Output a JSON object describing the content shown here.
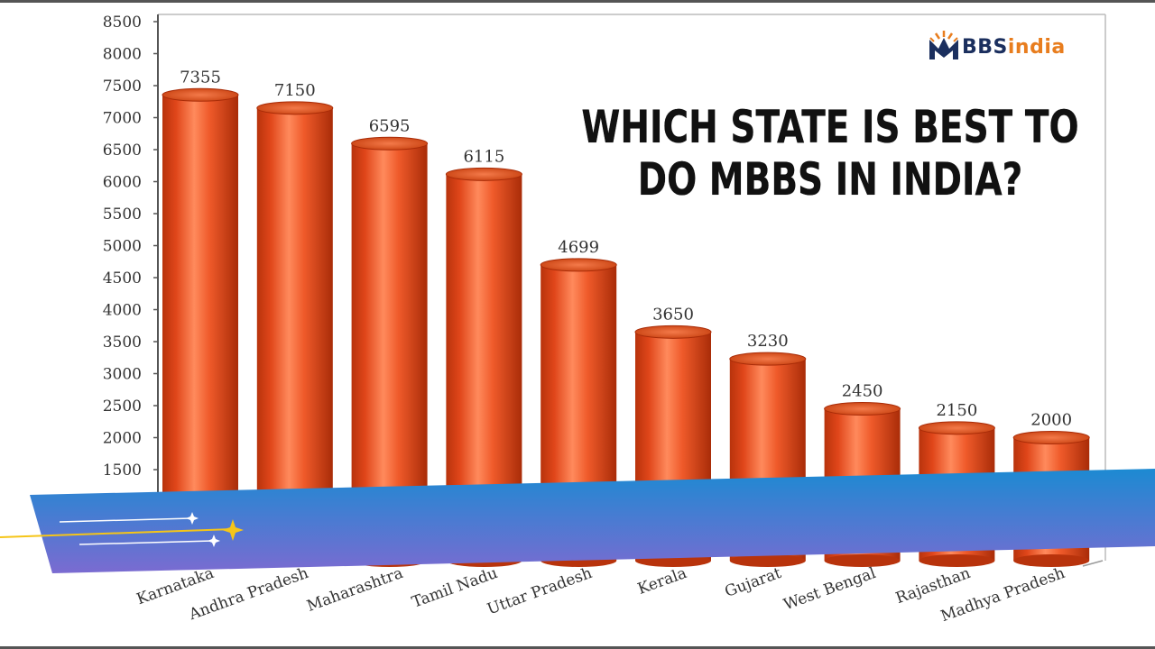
{
  "logo": {
    "brand_prefix": "M",
    "brand_blue": "BBS",
    "brand_orange": "india",
    "colors": {
      "blue": "#1b2f5e",
      "orange": "#e87d1e"
    }
  },
  "headline": {
    "line1": "WHICH STATE IS BEST TO",
    "line2": "DO MBBS IN INDIA?"
  },
  "banner": {
    "colors": {
      "start": "#1c8ad2",
      "end": "#7b6bd1",
      "sparkle": "#f5c518"
    },
    "icon": "sparkle-icon"
  },
  "chart_data": {
    "type": "bar",
    "categories": [
      "Karnataka",
      "Andhra Pradesh",
      "Maharashtra",
      "Tamil Nadu",
      "Uttar Pradesh",
      "Kerala",
      "Gujarat",
      "West Bengal",
      "Rajasthan",
      "Madhya Pradesh"
    ],
    "values": [
      7355,
      7150,
      6595,
      6115,
      4699,
      3650,
      3230,
      2450,
      2150,
      2000
    ],
    "data_labels": [
      "7355",
      "7150",
      "6595",
      "6115",
      "4699",
      "3650",
      "3230",
      "2450",
      "2150",
      "2000"
    ],
    "yticks": [
      "8500",
      "8000",
      "7500",
      "7000",
      "6500",
      "6000",
      "5500",
      "5000",
      "4500",
      "4000",
      "3500",
      "3000",
      "2500",
      "2000",
      "1500"
    ],
    "ylim": [
      0,
      8500
    ],
    "bar_color": "#e8501f",
    "grid": false,
    "legend": "none"
  }
}
